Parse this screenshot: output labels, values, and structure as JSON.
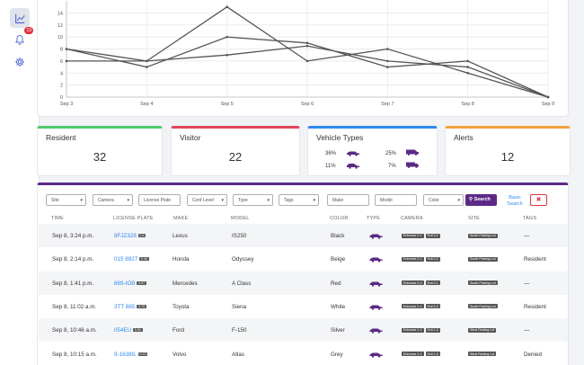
{
  "sidebar": {
    "items": [
      {
        "icon": "chart-icon",
        "active": true
      },
      {
        "icon": "bell-icon",
        "badge": "13"
      },
      {
        "icon": "gear-icon"
      }
    ]
  },
  "chart_data": {
    "type": "line",
    "categories": [
      "Sep 3",
      "Sep 4",
      "Sep 5",
      "Sep 6",
      "Sep 7",
      "Sep 8",
      "Sep 9"
    ],
    "ytick_labels": [
      "0",
      "2",
      "4",
      "6",
      "8",
      "10",
      "12",
      "14"
    ],
    "ylim": [
      0,
      16
    ],
    "grid": true,
    "series": [
      {
        "values": [
          8,
          6,
          15,
          6,
          8,
          4,
          0
        ]
      },
      {
        "values": [
          8,
          5,
          10,
          9,
          5,
          6,
          0
        ]
      },
      {
        "values": [
          6,
          6,
          7,
          8.5,
          6,
          5,
          0
        ]
      }
    ]
  },
  "stats": {
    "resident": {
      "title": "Resident",
      "value": "32",
      "color": "#4cc96a"
    },
    "visitor": {
      "title": "Visitor",
      "value": "22",
      "color": "#e0475a"
    },
    "vehicle_types": {
      "title": "Vehicle Types",
      "color": "#2d8af0",
      "items": [
        {
          "pct": "36%",
          "icon": "sedan-icon"
        },
        {
          "pct": "25%",
          "icon": "van-icon"
        },
        {
          "pct": "11%",
          "icon": "hatchback-icon"
        },
        {
          "pct": "7%",
          "icon": "truck-icon"
        }
      ]
    },
    "alerts": {
      "title": "Alerts",
      "value": "12",
      "color": "#f2a23b"
    }
  },
  "filters": {
    "site": "Site",
    "camera": "Camera",
    "license_plate": "License Plate",
    "conf_level": "Conf Level",
    "type": "Type",
    "tags": "Tags",
    "make": "Make",
    "model": "Model",
    "color": "Color",
    "search_label": "Search",
    "basic_search": "Basic Search",
    "clear_label": "✖"
  },
  "table": {
    "headers": [
      "TIME",
      "LICENSE PLATE",
      "MAKE",
      "MODEL",
      "COLOR",
      "TYPE",
      "CAMERA",
      "SITE",
      "TAGS"
    ],
    "rows": [
      {
        "time": "Sep 8, 3:24 p.m.",
        "plate": "8FJZ328",
        "conf": "0.6",
        "make": "Lexus",
        "model": "IS250",
        "color": "Black",
        "cams": [
          "Entrance 2-1",
          "Exit 2-2"
        ],
        "site": "South Parking Lot",
        "tags": "—"
      },
      {
        "time": "Sep 8, 2:14 p.m.",
        "plate": "015 8927",
        "conf": "0.34",
        "make": "Honda",
        "model": "Odyssey",
        "color": "Beige",
        "cams": [
          "Entrance 2-1",
          "Exit 2-2"
        ],
        "site": "South Parking Lot",
        "tags": "Resident"
      },
      {
        "time": "Sep 8, 1:41 p.m.",
        "plate": "889-IOB",
        "conf": "0.67",
        "make": "Mercedes",
        "model": "A Class",
        "color": "Red",
        "cams": [
          "Entrance 0-0",
          "Exit 0-1"
        ],
        "site": "South Parking Lot",
        "tags": "—"
      },
      {
        "time": "Sep 8, 11:02 a.m.",
        "plate": "3TT 885",
        "conf": "0.75",
        "make": "Toyota",
        "model": "Siena",
        "color": "White",
        "cams": [
          "Entrance 2-1",
          "Exit 2-2"
        ],
        "site": "South Parking Lot",
        "tags": "Resident"
      },
      {
        "time": "Sep 8, 10:46 a.m.",
        "plate": "054EU",
        "conf": "0.81",
        "make": "Ford",
        "model": "F-150",
        "color": "Silver",
        "cams": [
          "Entrance 1-1",
          "Exit 1-2"
        ],
        "site": "West Parking Lot",
        "tags": "—"
      },
      {
        "time": "Sep 8, 10:15 a.m.",
        "plate": "9-1638IL",
        "conf": "0.22",
        "make": "Volvo",
        "model": "Atlas",
        "color": "Grey",
        "cams": [
          "Entrance 1-1",
          "Exit 1-2"
        ],
        "site": "West Parking Lot",
        "tags": "Denied"
      }
    ]
  }
}
